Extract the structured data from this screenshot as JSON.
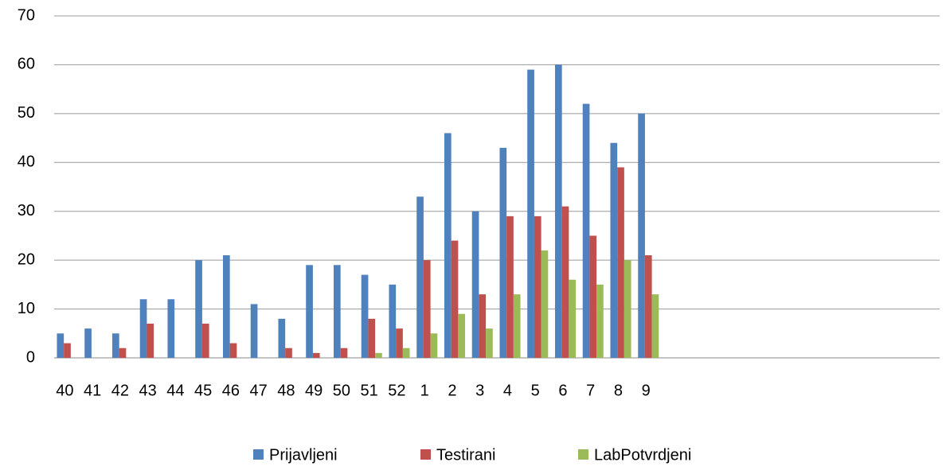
{
  "chart_data": {
    "type": "bar",
    "categories": [
      "40",
      "41",
      "42",
      "43",
      "44",
      "45",
      "46",
      "47",
      "48",
      "49",
      "50",
      "51",
      "52",
      "1",
      "2",
      "3",
      "4",
      "5",
      "6",
      "7",
      "8",
      "9",
      null,
      null,
      null,
      null,
      null,
      null,
      null,
      null,
      null,
      null
    ],
    "series": [
      {
        "name": "Prijavljeni",
        "color": "#4f81bd",
        "values": [
          5,
          6,
          5,
          12,
          12,
          20,
          21,
          11,
          8,
          19,
          19,
          17,
          15,
          33,
          46,
          30,
          43,
          59,
          60,
          52,
          44,
          50,
          null,
          null,
          null,
          null,
          null,
          null,
          null,
          null,
          null,
          null
        ]
      },
      {
        "name": "Testirani",
        "color": "#c0504d",
        "values": [
          3,
          0,
          2,
          7,
          0,
          7,
          3,
          0,
          2,
          1,
          2,
          8,
          6,
          20,
          24,
          13,
          29,
          29,
          31,
          25,
          39,
          21,
          null,
          null,
          null,
          null,
          null,
          null,
          null,
          null,
          null,
          null
        ]
      },
      {
        "name": "LabPotvrdjeni",
        "color": "#9bbb59",
        "values": [
          0,
          0,
          0,
          0,
          0,
          0,
          0,
          0,
          0,
          0,
          0,
          1,
          2,
          5,
          9,
          6,
          13,
          22,
          16,
          15,
          20,
          13,
          null,
          null,
          null,
          null,
          null,
          null,
          null,
          null,
          null,
          null
        ]
      }
    ],
    "ylim": [
      0,
      70
    ],
    "yticks": [
      0,
      10,
      20,
      30,
      40,
      50,
      60,
      70
    ],
    "grid": true,
    "legend": "bottom"
  }
}
